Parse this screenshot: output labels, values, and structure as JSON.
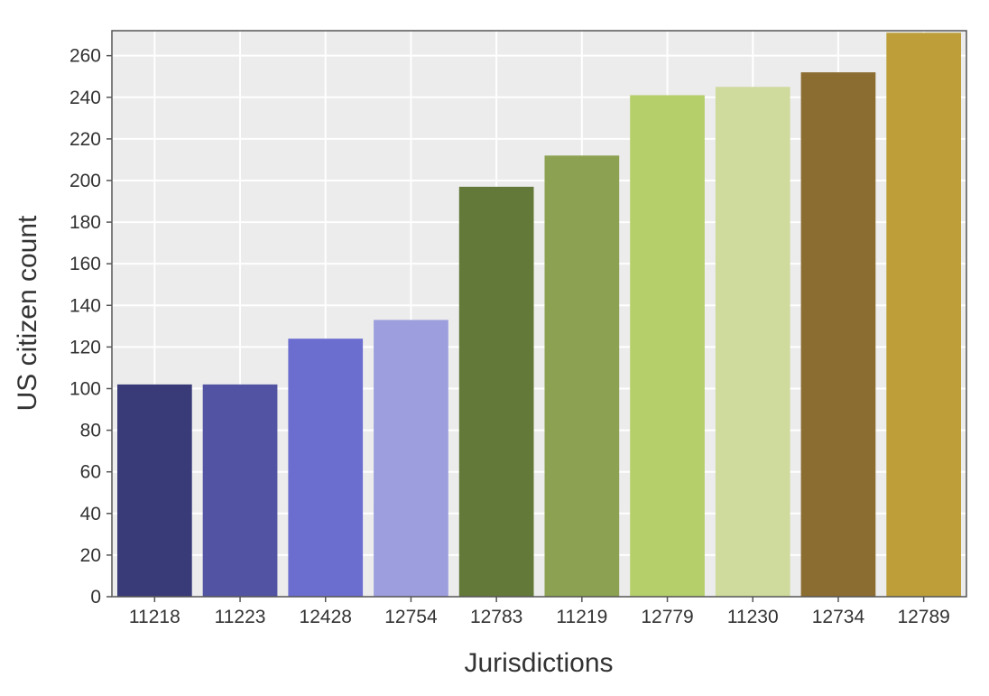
{
  "chart_data": {
    "type": "bar",
    "title": "",
    "xlabel": "Jurisdictions",
    "ylabel": "US citizen count",
    "categories": [
      "11218",
      "11223",
      "12428",
      "12754",
      "12783",
      "11219",
      "12779",
      "11230",
      "12734",
      "12789"
    ],
    "values": [
      102,
      102,
      124,
      133,
      197,
      212,
      241,
      245,
      252,
      271
    ],
    "colors": [
      "#393b79",
      "#5254a3",
      "#6b6ecf",
      "#9c9ede",
      "#637939",
      "#8ca252",
      "#b5cf6b",
      "#cedb9c",
      "#8c6d31",
      "#bd9e39"
    ],
    "ylim": [
      0,
      272
    ],
    "yticks": [
      0,
      20,
      40,
      60,
      80,
      100,
      120,
      140,
      160,
      180,
      200,
      220,
      240,
      260
    ],
    "grid": true,
    "legend": "none"
  }
}
